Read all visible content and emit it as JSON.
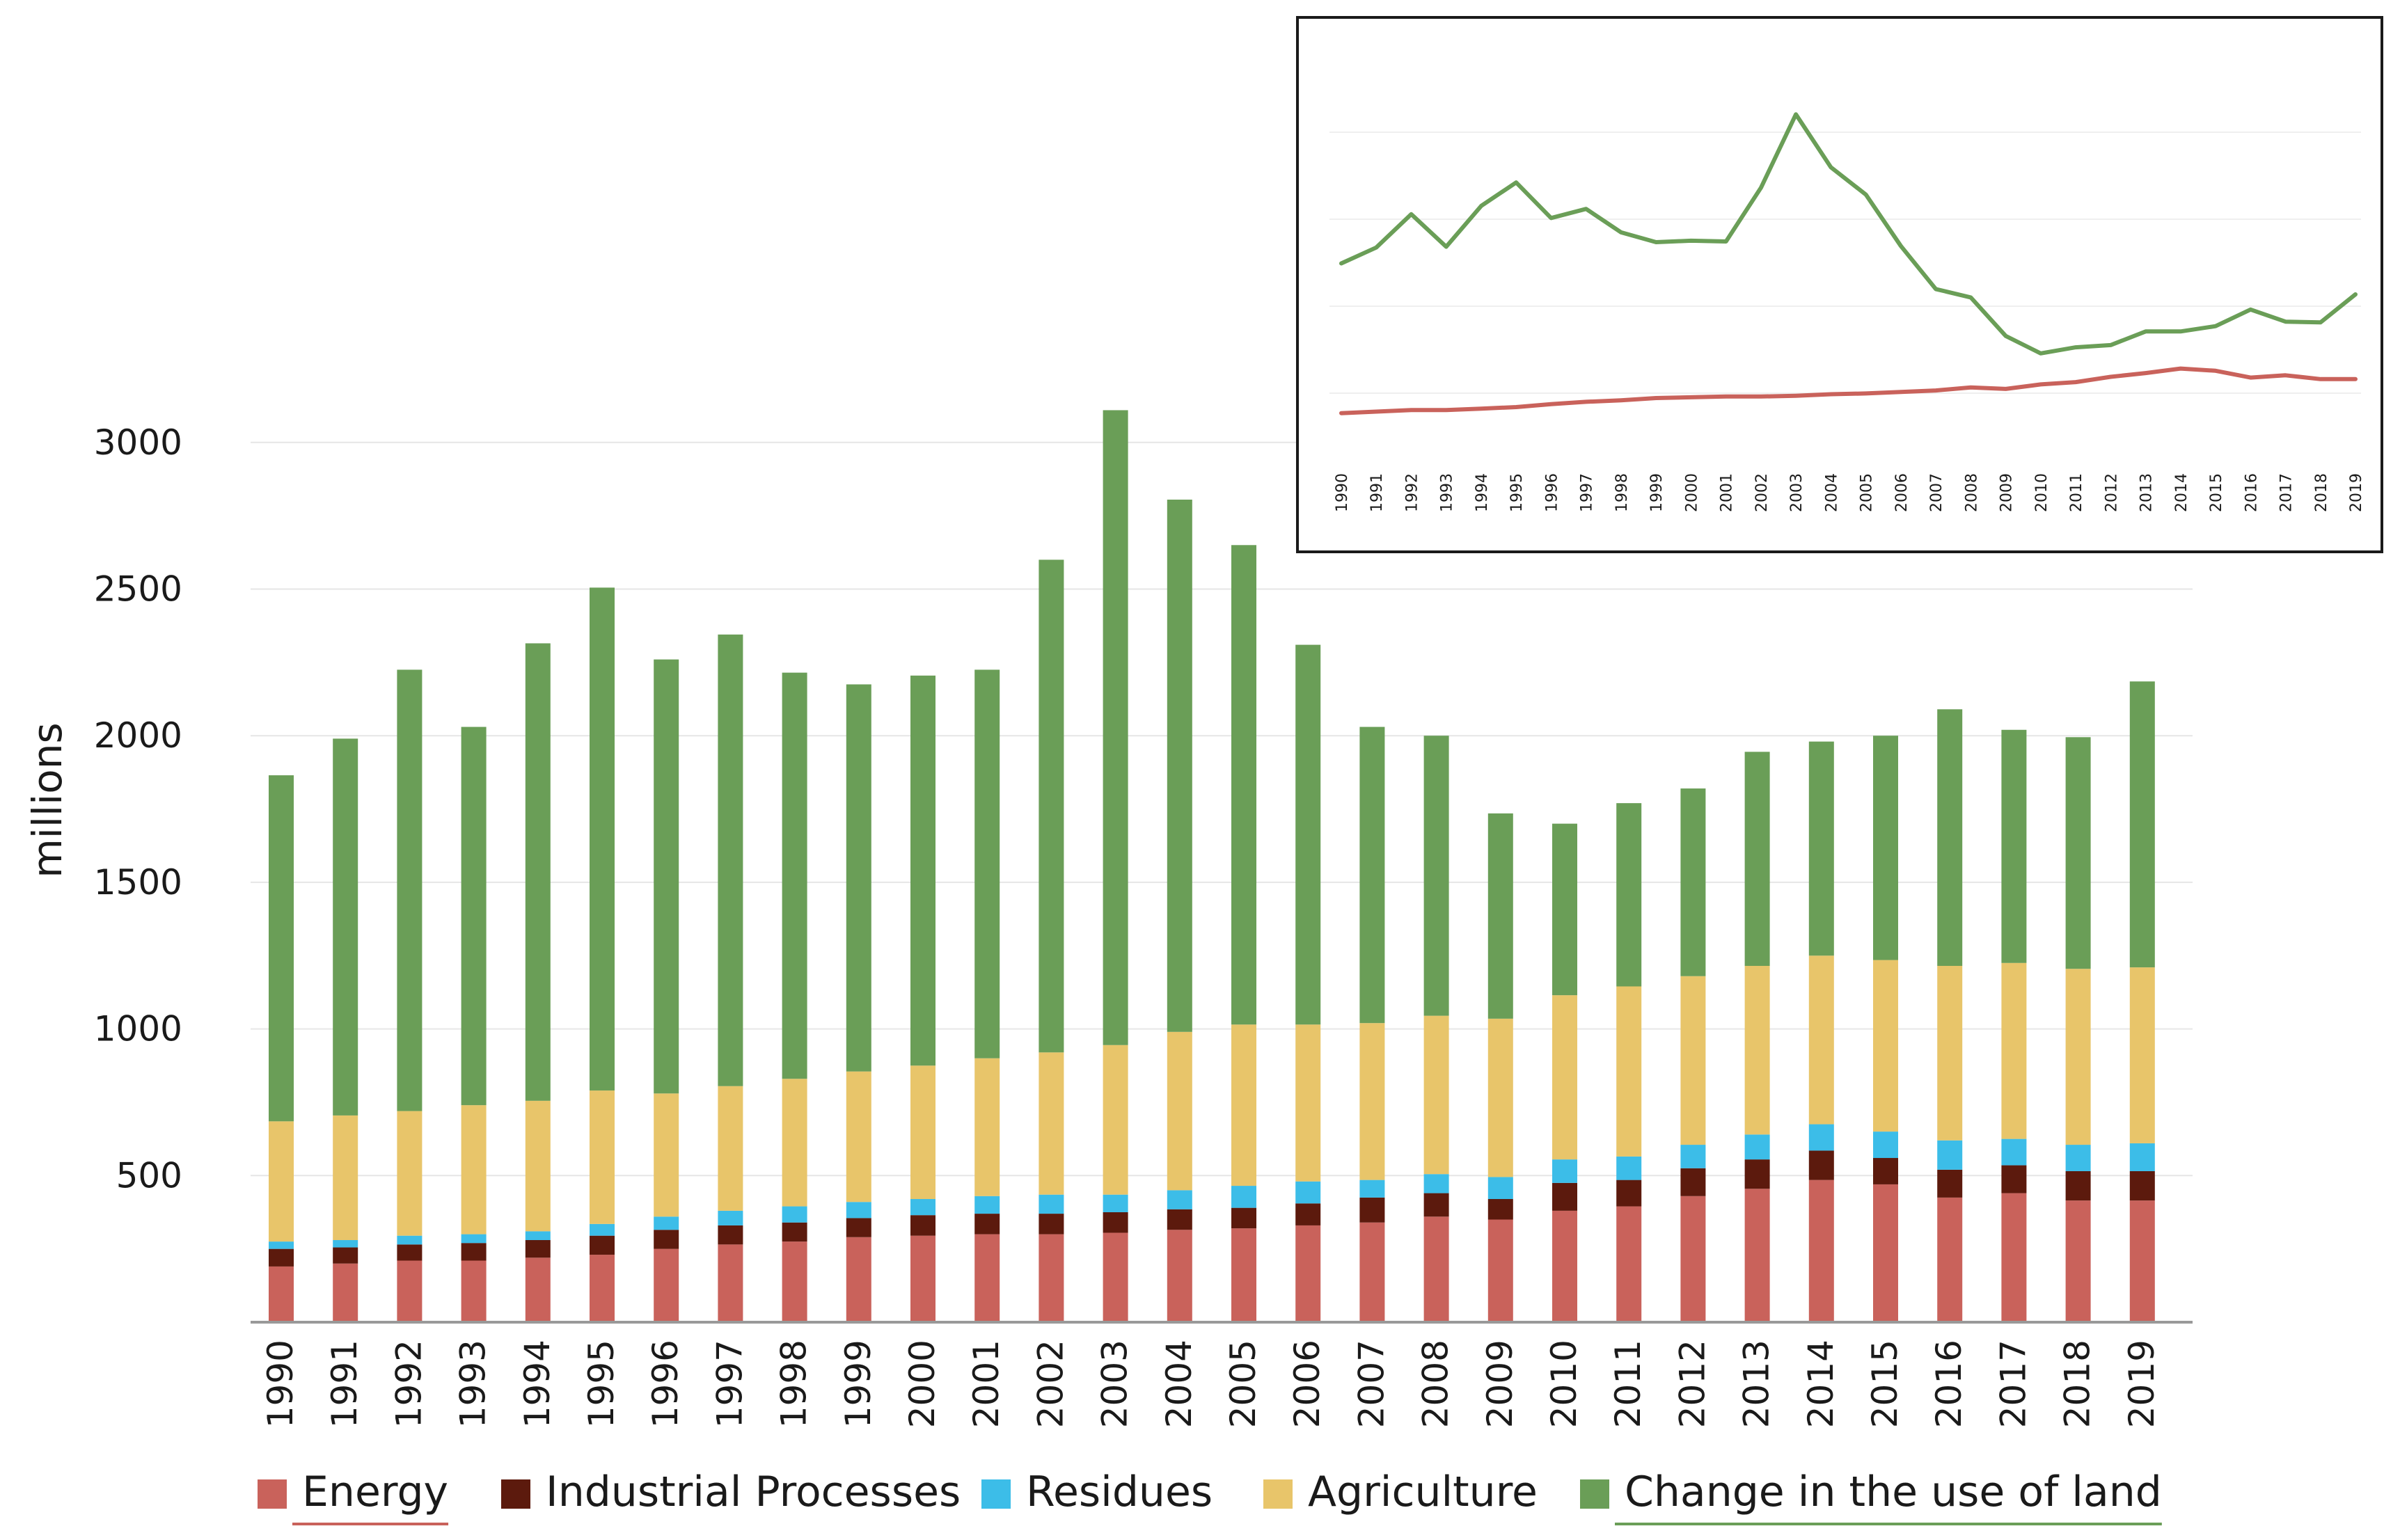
{
  "chart_data": [
    {
      "type": "bar",
      "stacked": true,
      "title": "",
      "xlabel": "",
      "ylabel": "millions",
      "ylim": [
        0,
        3100
      ],
      "yticks": [
        500,
        1000,
        1500,
        2000,
        2500,
        3000
      ],
      "grid": true,
      "legend_position": "bottom",
      "categories": [
        "1990",
        "1991",
        "1992",
        "1993",
        "1994",
        "1995",
        "1996",
        "1997",
        "1998",
        "1999",
        "2000",
        "2001",
        "2002",
        "2003",
        "2004",
        "2005",
        "2006",
        "2007",
        "2008",
        "2009",
        "2010",
        "2011",
        "2012",
        "2013",
        "2014",
        "2015",
        "2016",
        "2017",
        "2018",
        "2019"
      ],
      "series": [
        {
          "name": "Energy",
          "color": "#c9625b",
          "values": [
            190,
            200,
            210,
            210,
            220,
            230,
            250,
            265,
            275,
            290,
            295,
            300,
            300,
            305,
            315,
            320,
            330,
            340,
            360,
            350,
            380,
            395,
            430,
            455,
            485,
            470,
            425,
            440,
            415,
            415
          ]
        },
        {
          "name": "Industrial Processes",
          "color": "#5c1a0d",
          "values": [
            60,
            55,
            55,
            60,
            60,
            65,
            65,
            65,
            65,
            65,
            70,
            70,
            70,
            70,
            70,
            70,
            75,
            85,
            80,
            70,
            95,
            90,
            95,
            100,
            100,
            90,
            95,
            95,
            100,
            100
          ]
        },
        {
          "name": "Residues",
          "color": "#3cbde8",
          "values": [
            25,
            25,
            30,
            30,
            30,
            40,
            45,
            50,
            55,
            55,
            55,
            60,
            65,
            60,
            65,
            75,
            75,
            60,
            65,
            75,
            80,
            80,
            80,
            85,
            90,
            90,
            100,
            90,
            90,
            95
          ]
        },
        {
          "name": "Agriculture",
          "color": "#e8c56a",
          "values": [
            410,
            425,
            425,
            440,
            445,
            455,
            420,
            425,
            435,
            445,
            455,
            470,
            485,
            510,
            540,
            550,
            535,
            535,
            540,
            540,
            560,
            580,
            575,
            575,
            575,
            585,
            595,
            600,
            600,
            600
          ]
        },
        {
          "name": "Change in the use of land",
          "color": "#6a9e57",
          "values": [
            1180,
            1285,
            1505,
            1290,
            1560,
            1715,
            1480,
            1540,
            1385,
            1320,
            1330,
            1325,
            1680,
            2165,
            1815,
            1635,
            1295,
            1010,
            955,
            700,
            585,
            625,
            640,
            730,
            730,
            765,
            875,
            795,
            790,
            975
          ]
        }
      ]
    },
    {
      "type": "line",
      "title": "",
      "categories": [
        "1990",
        "1991",
        "1992",
        "1993",
        "1994",
        "1995",
        "1996",
        "1997",
        "1998",
        "1999",
        "2000",
        "2001",
        "2002",
        "2003",
        "2004",
        "2005",
        "2006",
        "2007",
        "2008",
        "2009",
        "2010",
        "2011",
        "2012",
        "2013",
        "2014",
        "2015",
        "2016",
        "2017",
        "2018",
        "2019"
      ],
      "ylim": [
        0,
        2300
      ],
      "grid": true,
      "series": [
        {
          "name": "Change in the use of land",
          "color": "#6a9e57",
          "values": [
            1180,
            1285,
            1505,
            1290,
            1560,
            1715,
            1480,
            1540,
            1385,
            1320,
            1330,
            1325,
            1680,
            2165,
            1815,
            1635,
            1295,
            1010,
            955,
            700,
            585,
            625,
            640,
            730,
            730,
            765,
            875,
            795,
            790,
            975
          ]
        },
        {
          "name": "Energy",
          "color": "#c9625b",
          "values": [
            190,
            200,
            210,
            210,
            220,
            230,
            250,
            265,
            275,
            290,
            295,
            300,
            300,
            305,
            315,
            320,
            330,
            340,
            360,
            350,
            380,
            395,
            430,
            455,
            485,
            470,
            425,
            440,
            415,
            415
          ]
        }
      ]
    }
  ]
}
